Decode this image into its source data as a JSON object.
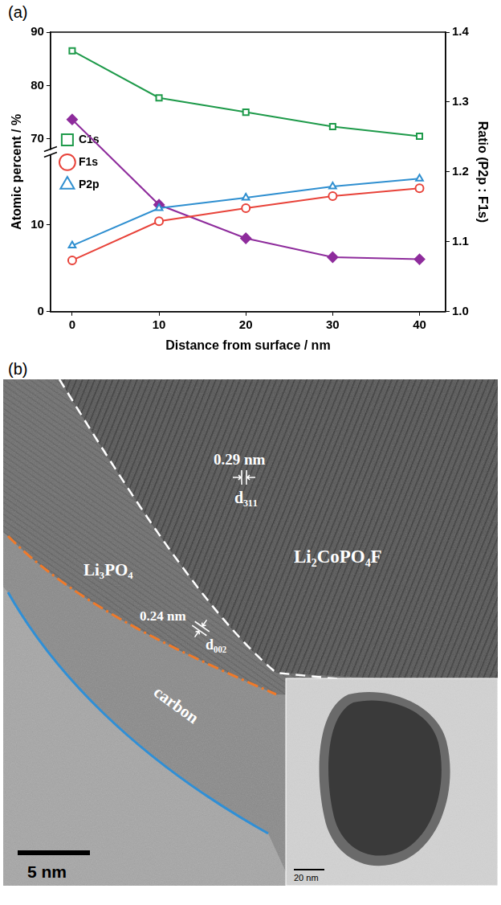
{
  "chart_data": {
    "type": "line",
    "panel": "(a)",
    "x": [
      0,
      10,
      20,
      30,
      40
    ],
    "xlim": [
      -2.5,
      43
    ],
    "xticks": [
      0,
      10,
      20,
      30,
      40
    ],
    "x_label": "Distance from surface / nm",
    "y_label": "Atomic percent / %",
    "y2_label": "Ratio (P2p : F1s)",
    "ylim": [
      [
        0,
        18
      ],
      [
        68,
        90
      ]
    ],
    "yticks": [
      0,
      10,
      70,
      80,
      90
    ],
    "y2lim": [
      1,
      1.4
    ],
    "y2ticks": [
      {
        "value": 1,
        "label": "1.0"
      },
      1.1,
      1.2,
      1.3,
      1.4
    ],
    "grid": false,
    "legend": "top",
    "series": [
      {
        "name": "C1s",
        "color": "#1e9a4a",
        "marker": "open-square",
        "values": [
          86.5,
          77.7,
          75.0,
          72.3,
          70.5
        ]
      },
      {
        "name": "F1s",
        "color": "#e8433a",
        "marker": "open-circle",
        "values": [
          5.9,
          10.4,
          11.9,
          13.3,
          14.2
        ]
      },
      {
        "name": "P2p",
        "color": "#2f8fd0",
        "marker": "open-triangle",
        "values": [
          7.6,
          11.9,
          13.1,
          14.4,
          15.3
        ]
      },
      {
        "color": "#8e2c9c",
        "marker": "diamond",
        "axis": "y2",
        "values": [
          1.275,
          1.153,
          1.105,
          1.078,
          1.075
        ]
      }
    ]
  },
  "panel_b": {
    "panel": "(b)",
    "phases": {
      "crystal": "Li₂CoPO₄F",
      "coating": "Li₃PO₄",
      "outer": "carbon"
    },
    "fringes": [
      {
        "spacing": "0.29 nm",
        "plane": "d₃₁₁"
      },
      {
        "spacing": "0.24 nm",
        "plane": "d₀₀₂"
      }
    ],
    "scale_bar": "5 nm",
    "inset_scale_bar": "20 nm"
  }
}
